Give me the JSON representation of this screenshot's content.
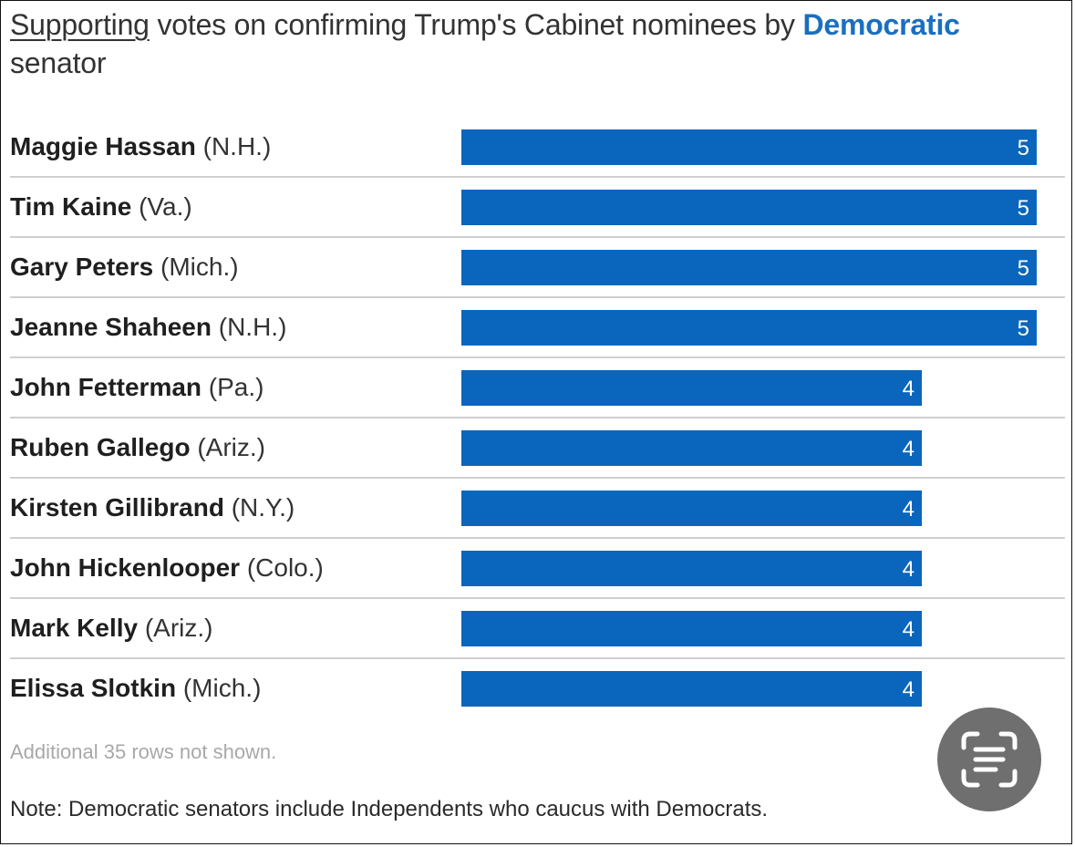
{
  "header": {
    "title_underlined": "Supporting",
    "title_middle": " votes on confirming Trump's Cabinet nominees by ",
    "title_highlight": "Democratic",
    "title_end": " senator"
  },
  "chart_data": {
    "type": "bar",
    "orientation": "horizontal",
    "categories": [
      "Maggie Hassan (N.H.)",
      "Tim Kaine (Va.)",
      "Gary Peters (Mich.)",
      "Jeanne Shaheen (N.H.)",
      "John Fetterman (Pa.)",
      "Ruben Gallego (Ariz.)",
      "Kirsten Gillibrand (N.Y.)",
      "John Hickenlooper (Colo.)",
      "Mark Kelly (Ariz.)",
      "Elissa Slotkin (Mich.)"
    ],
    "rows": [
      {
        "name": "Maggie Hassan",
        "state": "(N.H.)",
        "value": 5
      },
      {
        "name": "Tim Kaine",
        "state": "(Va.)",
        "value": 5
      },
      {
        "name": "Gary Peters",
        "state": "(Mich.)",
        "value": 5
      },
      {
        "name": "Jeanne Shaheen",
        "state": "(N.H.)",
        "value": 5
      },
      {
        "name": "John Fetterman",
        "state": "(Pa.)",
        "value": 4
      },
      {
        "name": "Ruben Gallego",
        "state": "(Ariz.)",
        "value": 4
      },
      {
        "name": "Kirsten Gillibrand",
        "state": "(N.Y.)",
        "value": 4
      },
      {
        "name": "John Hickenlooper",
        "state": "(Colo.)",
        "value": 4
      },
      {
        "name": "Mark Kelly",
        "state": "(Ariz.)",
        "value": 4
      },
      {
        "name": "Elissa Slotkin",
        "state": "(Mich.)",
        "value": 4
      }
    ],
    "values": [
      5,
      5,
      5,
      5,
      4,
      4,
      4,
      4,
      4,
      4
    ],
    "xlim": [
      0,
      5
    ],
    "bar_color": "#0a66bd",
    "grid": false,
    "title": "Supporting votes on confirming Trump's Cabinet nominees by Democratic senator"
  },
  "footer": {
    "more_rows": "Additional 35 rows not shown.",
    "note": "Note: Democratic senators include Independents who caucus with Democrats."
  },
  "overlay": {
    "scan_icon": "text-scan-icon",
    "scan_color": "#6f6f6f"
  }
}
